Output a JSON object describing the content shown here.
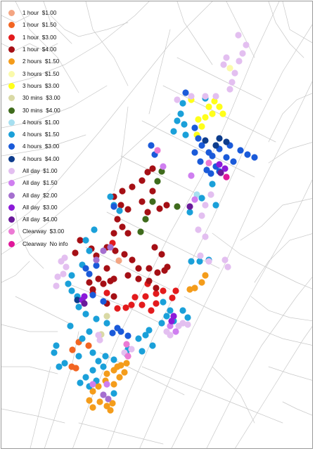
{
  "legend": {
    "items": [
      {
        "label": "1 hour  $1.00",
        "color": "#f4a582"
      },
      {
        "label": "1 hour  $1.50",
        "color": "#f26522"
      },
      {
        "label": "1 hour  $3.00",
        "color": "#e31a1c"
      },
      {
        "label": "1 hour  $4.00",
        "color": "#a50f15"
      },
      {
        "label": "2 hours  $1.50",
        "color": "#f49c1a"
      },
      {
        "label": "3 hours  $1.50",
        "color": "#fafaaa"
      },
      {
        "label": "3 hours  $3.00",
        "color": "#ffff1a"
      },
      {
        "label": "30 mins  $3.00",
        "color": "#d9d9a5"
      },
      {
        "label": "30 mins  $4.00",
        "color": "#3f6b1c"
      },
      {
        "label": "4 hours  $1.00",
        "color": "#a6dff0"
      },
      {
        "label": "4 hours  $1.50",
        "color": "#1aa0d9"
      },
      {
        "label": "4 hours  $3.00",
        "color": "#1a5ad9"
      },
      {
        "label": "4 hours  $4.00",
        "color": "#0d3c8c"
      },
      {
        "label": "All day  $1.00",
        "color": "#e3bff0"
      },
      {
        "label": "All day  $1.50",
        "color": "#cf7ef0"
      },
      {
        "label": "All day  $2.00",
        "color": "#a56fcf"
      },
      {
        "label": "All day  $3.00",
        "color": "#8c1ad9"
      },
      {
        "label": "All day  $4.00",
        "color": "#6a1a9a"
      },
      {
        "label": "Clearway  $3.00",
        "color": "#ec7ad4"
      },
      {
        "label": "Clearway  No info",
        "color": "#e0189a"
      }
    ]
  },
  "map": {
    "road_color": "#c8c8c8",
    "background": "#ffffff",
    "markers": [
      [
        0,
        167,
        369
      ],
      [
        1,
        101,
        496
      ],
      [
        1,
        100,
        520
      ],
      [
        1,
        106,
        522
      ],
      [
        1,
        124,
        490
      ],
      [
        1,
        110,
        485
      ],
      [
        2,
        165,
        437
      ],
      [
        2,
        177,
        436
      ],
      [
        2,
        185,
        432
      ],
      [
        2,
        190,
        421
      ],
      [
        2,
        205,
        420
      ],
      [
        2,
        220,
        416
      ],
      [
        2,
        230,
        412
      ],
      [
        2,
        200,
        432
      ],
      [
        2,
        213,
        440
      ],
      [
        2,
        220,
        430
      ],
      [
        2,
        248,
        412
      ],
      [
        2,
        243,
        422
      ],
      [
        2,
        208,
        402
      ],
      [
        2,
        158,
        344
      ],
      [
        2,
        130,
        415
      ],
      [
        2,
        150,
        415
      ],
      [
        3,
        215,
        238
      ],
      [
        3,
        208,
        243
      ],
      [
        3,
        200,
        255
      ],
      [
        3,
        186,
        264
      ],
      [
        3,
        172,
        270
      ],
      [
        3,
        160,
        278
      ],
      [
        3,
        170,
        290
      ],
      [
        3,
        180,
        296
      ],
      [
        3,
        165,
        310
      ],
      [
        3,
        172,
        321
      ],
      [
        3,
        180,
        330
      ],
      [
        3,
        160,
        330
      ],
      [
        3,
        150,
        350
      ],
      [
        3,
        162,
        355
      ],
      [
        3,
        175,
        360
      ],
      [
        3,
        186,
        368
      ],
      [
        3,
        195,
        380
      ],
      [
        3,
        210,
        380
      ],
      [
        3,
        222,
        386
      ],
      [
        3,
        195,
        395
      ],
      [
        3,
        210,
        398
      ],
      [
        3,
        220,
        408
      ],
      [
        3,
        150,
        380
      ],
      [
        3,
        138,
        395
      ],
      [
        3,
        145,
        402
      ],
      [
        3,
        155,
        398
      ],
      [
        3,
        125,
        400
      ],
      [
        3,
        130,
        410
      ],
      [
        3,
        160,
        420
      ],
      [
        3,
        180,
        390
      ],
      [
        3,
        135,
        362
      ],
      [
        3,
        128,
        352
      ],
      [
        3,
        200,
        285
      ],
      [
        3,
        208,
        300
      ],
      [
        3,
        225,
        295
      ],
      [
        3,
        235,
        290
      ],
      [
        3,
        215,
        270
      ],
      [
        3,
        150,
        430
      ],
      [
        3,
        160,
        395
      ],
      [
        3,
        105,
        358
      ],
      [
        3,
        112,
        340
      ],
      [
        3,
        232,
        383
      ],
      [
        3,
        228,
        360
      ],
      [
        3,
        218,
        350
      ],
      [
        3,
        236,
        378
      ],
      [
        4,
        290,
        390
      ],
      [
        4,
        285,
        400
      ],
      [
        4,
        275,
        408
      ],
      [
        4,
        268,
        410
      ],
      [
        4,
        170,
        518
      ],
      [
        4,
        175,
        528
      ],
      [
        4,
        160,
        525
      ],
      [
        4,
        150,
        530
      ],
      [
        4,
        148,
        540
      ],
      [
        4,
        138,
        548
      ],
      [
        4,
        130,
        555
      ],
      [
        4,
        125,
        568
      ],
      [
        4,
        130,
        578
      ],
      [
        4,
        140,
        570
      ],
      [
        4,
        150,
        576
      ],
      [
        4,
        158,
        572
      ],
      [
        4,
        155,
        582
      ],
      [
        4,
        165,
        520
      ],
      [
        4,
        178,
        515
      ],
      [
        4,
        168,
        535
      ],
      [
        4,
        160,
        545
      ],
      [
        5,
        325,
        95
      ],
      [
        6,
        270,
        140
      ],
      [
        6,
        295,
        150
      ],
      [
        6,
        303,
        142
      ],
      [
        6,
        310,
        150
      ],
      [
        6,
        290,
        165
      ],
      [
        6,
        280,
        168
      ],
      [
        6,
        285,
        178
      ],
      [
        6,
        278,
        190
      ],
      [
        6,
        300,
        160
      ],
      [
        6,
        315,
        160
      ],
      [
        7,
        150,
        448
      ],
      [
        7,
        142,
        474
      ],
      [
        8,
        228,
        242
      ],
      [
        8,
        222,
        256
      ],
      [
        8,
        215,
        285
      ],
      [
        8,
        205,
        310
      ],
      [
        8,
        198,
        328
      ],
      [
        8,
        250,
        292
      ],
      [
        9,
        278,
        275
      ],
      [
        10,
        290,
        138
      ],
      [
        10,
        258,
        145
      ],
      [
        10,
        255,
        160
      ],
      [
        10,
        250,
        170
      ],
      [
        10,
        260,
        175
      ],
      [
        10,
        245,
        185
      ],
      [
        10,
        262,
        190
      ],
      [
        10,
        155,
        278
      ],
      [
        10,
        160,
        290
      ],
      [
        10,
        168,
        298
      ],
      [
        10,
        132,
        325
      ],
      [
        10,
        120,
        340
      ],
      [
        10,
        125,
        355
      ],
      [
        10,
        115,
        375
      ],
      [
        10,
        100,
        390
      ],
      [
        10,
        95,
        402
      ],
      [
        10,
        100,
        412
      ],
      [
        10,
        108,
        420
      ],
      [
        10,
        110,
        435
      ],
      [
        10,
        120,
        445
      ],
      [
        10,
        135,
        452
      ],
      [
        10,
        150,
        458
      ],
      [
        10,
        125,
        470
      ],
      [
        10,
        115,
        480
      ],
      [
        10,
        98,
        462
      ],
      [
        10,
        78,
        490
      ],
      [
        10,
        75,
        500
      ],
      [
        10,
        90,
        515
      ],
      [
        10,
        82,
        520
      ],
      [
        10,
        110,
        505
      ],
      [
        10,
        130,
        500
      ],
      [
        10,
        138,
        512
      ],
      [
        10,
        148,
        505
      ],
      [
        10,
        160,
        510
      ],
      [
        10,
        145,
        520
      ],
      [
        10,
        130,
        525
      ],
      [
        10,
        120,
        535
      ],
      [
        10,
        112,
        543
      ],
      [
        10,
        125,
        548
      ],
      [
        10,
        135,
        540
      ],
      [
        10,
        160,
        558
      ],
      [
        10,
        178,
        502
      ],
      [
        10,
        205,
        475
      ],
      [
        10,
        210,
        468
      ],
      [
        10,
        215,
        490
      ],
      [
        10,
        200,
        498
      ],
      [
        10,
        180,
        495
      ],
      [
        10,
        195,
        480
      ],
      [
        10,
        228,
        458
      ],
      [
        10,
        235,
        448
      ],
      [
        10,
        240,
        440
      ],
      [
        10,
        258,
        440
      ],
      [
        10,
        265,
        450
      ],
      [
        10,
        270,
        370
      ],
      [
        10,
        282,
        370
      ],
      [
        10,
        295,
        368
      ],
      [
        10,
        305,
        290
      ],
      [
        10,
        300,
        260
      ],
      [
        10,
        285,
        280
      ],
      [
        10,
        268,
        300
      ],
      [
        10,
        230,
        428
      ],
      [
        10,
        245,
        455
      ],
      [
        11,
        262,
        130
      ],
      [
        11,
        275,
        180
      ],
      [
        11,
        280,
        195
      ],
      [
        11,
        285,
        205
      ],
      [
        11,
        275,
        215
      ],
      [
        11,
        283,
        228
      ],
      [
        11,
        292,
        240
      ],
      [
        11,
        300,
        220
      ],
      [
        11,
        310,
        210
      ],
      [
        11,
        320,
        222
      ],
      [
        11,
        330,
        228
      ],
      [
        11,
        340,
        212
      ],
      [
        11,
        350,
        218
      ],
      [
        11,
        360,
        222
      ],
      [
        11,
        325,
        205
      ],
      [
        11,
        305,
        235
      ],
      [
        11,
        298,
        245
      ],
      [
        11,
        310,
        242
      ],
      [
        11,
        295,
        215
      ],
      [
        11,
        160,
        292
      ],
      [
        11,
        165,
        465
      ],
      [
        11,
        158,
        472
      ],
      [
        11,
        170,
        470
      ],
      [
        11,
        180,
        476
      ],
      [
        11,
        120,
        380
      ],
      [
        11,
        125,
        388
      ],
      [
        11,
        135,
        376
      ],
      [
        11,
        213,
        205
      ],
      [
        11,
        218,
        218
      ],
      [
        11,
        130,
        418
      ],
      [
        11,
        145,
        427
      ],
      [
        12,
        320,
        200
      ],
      [
        12,
        310,
        195
      ],
      [
        12,
        290,
        198
      ],
      [
        12,
        305,
        205
      ],
      [
        12,
        108,
        425
      ],
      [
        13,
        337,
        48
      ],
      [
        13,
        348,
        62
      ],
      [
        13,
        343,
        74
      ],
      [
        13,
        338,
        85
      ],
      [
        13,
        332,
        102
      ],
      [
        13,
        328,
        115
      ],
      [
        13,
        325,
        125
      ],
      [
        13,
        316,
        90
      ],
      [
        13,
        320,
        80
      ],
      [
        13,
        305,
        135
      ],
      [
        13,
        290,
        135
      ],
      [
        13,
        270,
        135
      ],
      [
        13,
        250,
        140
      ],
      [
        13,
        298,
        275
      ],
      [
        13,
        290,
        290
      ],
      [
        13,
        285,
        305
      ],
      [
        13,
        280,
        325
      ],
      [
        13,
        290,
        335
      ],
      [
        13,
        283,
        362
      ],
      [
        13,
        295,
        370
      ],
      [
        13,
        318,
        368
      ],
      [
        13,
        322,
        378
      ],
      [
        13,
        265,
        460
      ],
      [
        13,
        258,
        458
      ],
      [
        13,
        252,
        462
      ],
      [
        13,
        235,
        470
      ],
      [
        13,
        240,
        475
      ],
      [
        13,
        185,
        495
      ],
      [
        13,
        175,
        500
      ],
      [
        13,
        90,
        365
      ],
      [
        13,
        85,
        370
      ],
      [
        13,
        92,
        378
      ],
      [
        13,
        80,
        392
      ],
      [
        13,
        88,
        388
      ],
      [
        13,
        78,
        405
      ],
      [
        13,
        138,
        475
      ],
      [
        13,
        140,
        482
      ],
      [
        14,
        230,
        235
      ],
      [
        14,
        270,
        248
      ],
      [
        14,
        130,
        545
      ],
      [
        14,
        248,
        470
      ],
      [
        14,
        240,
        462
      ],
      [
        14,
        150,
        545
      ],
      [
        14,
        275,
        282
      ],
      [
        15,
        155,
        350
      ],
      [
        15,
        145,
        355
      ],
      [
        15,
        135,
        368
      ],
      [
        15,
        145,
        560
      ],
      [
        15,
        152,
        566
      ],
      [
        16,
        115,
        425
      ],
      [
        16,
        118,
        420
      ],
      [
        16,
        245,
        448
      ],
      [
        16,
        242,
        455
      ],
      [
        16,
        310,
        232
      ],
      [
        16,
        318,
        238
      ],
      [
        17,
        268,
        292
      ],
      [
        17,
        312,
        244
      ],
      [
        17,
        118,
        430
      ],
      [
        18,
        222,
        212
      ],
      [
        18,
        295,
        230
      ],
      [
        18,
        178,
        488
      ],
      [
        18,
        180,
        505
      ],
      [
        19,
        320,
        250
      ]
    ]
  }
}
